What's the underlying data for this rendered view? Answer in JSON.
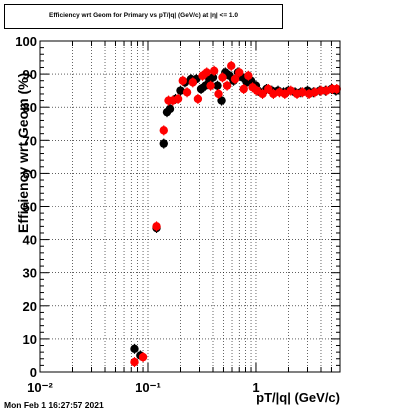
{
  "footer": {
    "timestamp": "Mon Feb  1 16:27:57 2021"
  },
  "colors": {
    "series_black": "#000000",
    "series_red": "#ff0000",
    "frame": "#000000",
    "grid": "#000000"
  },
  "chart_data": {
    "type": "scatter",
    "title": "Efficiency wrt Geom for Primary vs pT/|q| (GeV/c) at |η| <= 1.0",
    "xlabel": "pT/|q| (GeV/c)",
    "ylabel": "Efficiency wrt Geom (%)",
    "x_scale": "log",
    "xlim": [
      0.01,
      6.0
    ],
    "ylim": [
      0,
      100
    ],
    "x_ticks": [
      {
        "value": 0.01,
        "label": "10⁻²"
      },
      {
        "value": 0.1,
        "label": "10⁻¹"
      },
      {
        "value": 1,
        "label": "1"
      }
    ],
    "y_ticks": [
      0,
      10,
      20,
      30,
      40,
      50,
      60,
      70,
      80,
      90,
      100
    ],
    "grid": true,
    "legend": "none",
    "series": [
      {
        "color": "#000000",
        "points": [
          {
            "x": 0.075,
            "y": 7.0
          },
          {
            "x": 0.085,
            "y": 5.0
          },
          {
            "x": 0.12,
            "y": 43.5
          },
          {
            "x": 0.14,
            "y": 69.0
          },
          {
            "x": 0.15,
            "y": 78.5
          },
          {
            "x": 0.16,
            "y": 79.5
          },
          {
            "x": 0.18,
            "y": 82.5
          },
          {
            "x": 0.2,
            "y": 85.0
          },
          {
            "x": 0.22,
            "y": 87.5
          },
          {
            "x": 0.25,
            "y": 88.5
          },
          {
            "x": 0.28,
            "y": 88.5
          },
          {
            "x": 0.31,
            "y": 85.5
          },
          {
            "x": 0.34,
            "y": 86.5
          },
          {
            "x": 0.37,
            "y": 88.5
          },
          {
            "x": 0.4,
            "y": 89.0
          },
          {
            "x": 0.44,
            "y": 86.5
          },
          {
            "x": 0.48,
            "y": 82.0
          },
          {
            "x": 0.52,
            "y": 90.5
          },
          {
            "x": 0.57,
            "y": 89.5
          },
          {
            "x": 0.62,
            "y": 88.0
          },
          {
            "x": 0.68,
            "y": 90.5
          },
          {
            "x": 0.75,
            "y": 89.0
          },
          {
            "x": 0.82,
            "y": 87.5
          },
          {
            "x": 0.9,
            "y": 88.0
          },
          {
            "x": 1.0,
            "y": 86.5
          },
          {
            "x": 1.1,
            "y": 84.5
          },
          {
            "x": 1.25,
            "y": 85.5
          },
          {
            "x": 1.4,
            "y": 85.0
          },
          {
            "x": 1.6,
            "y": 85.0
          },
          {
            "x": 1.8,
            "y": 84.5
          },
          {
            "x": 2.0,
            "y": 85.0
          },
          {
            "x": 2.3,
            "y": 84.5
          },
          {
            "x": 2.6,
            "y": 84.5
          },
          {
            "x": 3.0,
            "y": 85.0
          },
          {
            "x": 3.4,
            "y": 84.5
          },
          {
            "x": 3.9,
            "y": 85.0
          },
          {
            "x": 4.4,
            "y": 85.0
          },
          {
            "x": 5.0,
            "y": 85.5
          },
          {
            "x": 5.5,
            "y": 85.0
          }
        ]
      },
      {
        "color": "#ff0000",
        "points": [
          {
            "x": 0.075,
            "y": 3.0
          },
          {
            "x": 0.09,
            "y": 4.5
          },
          {
            "x": 0.12,
            "y": 44.0
          },
          {
            "x": 0.14,
            "y": 73.0
          },
          {
            "x": 0.155,
            "y": 82.0
          },
          {
            "x": 0.17,
            "y": 82.0
          },
          {
            "x": 0.19,
            "y": 82.5
          },
          {
            "x": 0.21,
            "y": 88.0
          },
          {
            "x": 0.23,
            "y": 84.5
          },
          {
            "x": 0.26,
            "y": 87.5
          },
          {
            "x": 0.29,
            "y": 82.5
          },
          {
            "x": 0.32,
            "y": 89.5
          },
          {
            "x": 0.35,
            "y": 90.5
          },
          {
            "x": 0.38,
            "y": 86.5
          },
          {
            "x": 0.41,
            "y": 91.0
          },
          {
            "x": 0.45,
            "y": 84.0
          },
          {
            "x": 0.49,
            "y": 89.0
          },
          {
            "x": 0.54,
            "y": 86.5
          },
          {
            "x": 0.59,
            "y": 92.5
          },
          {
            "x": 0.64,
            "y": 88.5
          },
          {
            "x": 0.7,
            "y": 90.5
          },
          {
            "x": 0.77,
            "y": 85.5
          },
          {
            "x": 0.85,
            "y": 89.5
          },
          {
            "x": 0.93,
            "y": 86.0
          },
          {
            "x": 1.02,
            "y": 85.0
          },
          {
            "x": 1.15,
            "y": 84.0
          },
          {
            "x": 1.3,
            "y": 85.5
          },
          {
            "x": 1.45,
            "y": 84.0
          },
          {
            "x": 1.65,
            "y": 84.5
          },
          {
            "x": 1.85,
            "y": 84.0
          },
          {
            "x": 2.1,
            "y": 85.0
          },
          {
            "x": 2.4,
            "y": 84.0
          },
          {
            "x": 2.7,
            "y": 84.5
          },
          {
            "x": 3.1,
            "y": 84.0
          },
          {
            "x": 3.5,
            "y": 84.5
          },
          {
            "x": 4.0,
            "y": 85.0
          },
          {
            "x": 4.5,
            "y": 85.0
          },
          {
            "x": 5.1,
            "y": 85.5
          },
          {
            "x": 5.6,
            "y": 85.5
          }
        ]
      }
    ]
  }
}
